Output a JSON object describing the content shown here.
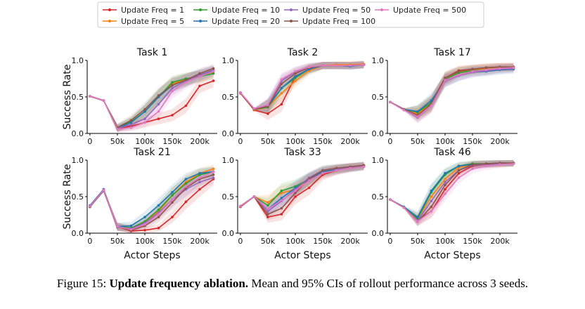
{
  "caption": {
    "label": "Figure 15:",
    "bold": "Update frequency ablation.",
    "text": "Mean and 95% CIs of rollout performance across 3 seeds."
  },
  "chart_data": {
    "type": "line",
    "xlabel": "Actor Steps",
    "ylabel": "Success Rate",
    "xlim": [
      -5000,
      232000
    ],
    "ylim": [
      0,
      1.0
    ],
    "xticks": [
      0,
      50000,
      100000,
      150000,
      200000
    ],
    "xtick_labels": [
      "0",
      "50k",
      "100k",
      "150k",
      "200k"
    ],
    "yticks": [
      0,
      0.5,
      1.0
    ],
    "ytick_labels": [
      "0.0",
      "0.5",
      "1.0"
    ],
    "x": [
      0,
      25000,
      50000,
      75000,
      100000,
      125000,
      150000,
      175000,
      200000,
      225000
    ],
    "legend": [
      {
        "name": "Update Freq = 1",
        "color": "#d62728"
      },
      {
        "name": "Update Freq = 5",
        "color": "#ff7f0e"
      },
      {
        "name": "Update Freq = 10",
        "color": "#2ca02c"
      },
      {
        "name": "Update Freq = 20",
        "color": "#1f77b4"
      },
      {
        "name": "Update Freq = 50",
        "color": "#9467bd"
      },
      {
        "name": "Update Freq = 100",
        "color": "#8c564b"
      },
      {
        "name": "Update Freq = 500",
        "color": "#e377c2"
      }
    ],
    "panels": [
      {
        "title": "Task 1",
        "series": [
          {
            "name": "Update Freq = 1",
            "values": [
              0.51,
              0.45,
              0.07,
              0.1,
              0.15,
              0.2,
              0.25,
              0.38,
              0.65,
              0.72
            ]
          },
          {
            "name": "Update Freq = 5",
            "values": [
              0.51,
              0.45,
              0.07,
              0.15,
              0.3,
              0.5,
              0.68,
              0.74,
              0.78,
              0.84
            ]
          },
          {
            "name": "Update Freq = 10",
            "values": [
              0.51,
              0.45,
              0.08,
              0.16,
              0.3,
              0.5,
              0.7,
              0.75,
              0.78,
              0.82
            ]
          },
          {
            "name": "Update Freq = 20",
            "values": [
              0.51,
              0.45,
              0.07,
              0.15,
              0.3,
              0.5,
              0.66,
              0.73,
              0.8,
              0.86
            ]
          },
          {
            "name": "Update Freq = 50",
            "values": [
              0.51,
              0.45,
              0.07,
              0.12,
              0.2,
              0.4,
              0.62,
              0.72,
              0.8,
              0.87
            ]
          },
          {
            "name": "Update Freq = 100",
            "values": [
              0.51,
              0.45,
              0.08,
              0.18,
              0.33,
              0.52,
              0.66,
              0.73,
              0.82,
              0.89
            ]
          },
          {
            "name": "Update Freq = 500",
            "values": [
              0.51,
              0.45,
              0.06,
              0.08,
              0.15,
              0.3,
              0.58,
              0.7,
              0.78,
              0.85
            ]
          }
        ]
      },
      {
        "title": "Task 2",
        "series": [
          {
            "name": "Update Freq = 1",
            "values": [
              0.55,
              0.32,
              0.27,
              0.4,
              0.78,
              0.88,
              0.93,
              0.93,
              0.93,
              0.94
            ]
          },
          {
            "name": "Update Freq = 5",
            "values": [
              0.56,
              0.32,
              0.36,
              0.55,
              0.72,
              0.86,
              0.93,
              0.94,
              0.94,
              0.95
            ]
          },
          {
            "name": "Update Freq = 10",
            "values": [
              0.56,
              0.33,
              0.36,
              0.62,
              0.76,
              0.88,
              0.93,
              0.93,
              0.93,
              0.94
            ]
          },
          {
            "name": "Update Freq = 20",
            "values": [
              0.56,
              0.33,
              0.37,
              0.62,
              0.78,
              0.88,
              0.93,
              0.93,
              0.92,
              0.94
            ]
          },
          {
            "name": "Update Freq = 50",
            "values": [
              0.56,
              0.34,
              0.38,
              0.72,
              0.84,
              0.91,
              0.93,
              0.93,
              0.93,
              0.94
            ]
          },
          {
            "name": "Update Freq = 100",
            "values": [
              0.56,
              0.33,
              0.37,
              0.68,
              0.82,
              0.9,
              0.93,
              0.93,
              0.93,
              0.94
            ]
          },
          {
            "name": "Update Freq = 500",
            "values": [
              0.56,
              0.34,
              0.39,
              0.74,
              0.85,
              0.91,
              0.93,
              0.93,
              0.93,
              0.94
            ]
          }
        ]
      },
      {
        "title": "Task 17",
        "series": [
          {
            "name": "Update Freq = 1",
            "values": [
              0.43,
              0.33,
              0.29,
              0.42,
              0.76,
              0.86,
              0.88,
              0.9,
              0.91,
              0.91
            ]
          },
          {
            "name": "Update Freq = 5",
            "values": [
              0.43,
              0.33,
              0.27,
              0.4,
              0.74,
              0.84,
              0.87,
              0.89,
              0.91,
              0.91
            ]
          },
          {
            "name": "Update Freq = 10",
            "values": [
              0.43,
              0.33,
              0.29,
              0.42,
              0.74,
              0.83,
              0.86,
              0.87,
              0.89,
              0.9
            ]
          },
          {
            "name": "Update Freq = 20",
            "values": [
              0.43,
              0.33,
              0.3,
              0.45,
              0.72,
              0.8,
              0.84,
              0.85,
              0.87,
              0.88
            ]
          },
          {
            "name": "Update Freq = 50",
            "values": [
              0.43,
              0.32,
              0.22,
              0.38,
              0.72,
              0.79,
              0.84,
              0.86,
              0.88,
              0.89
            ]
          },
          {
            "name": "Update Freq = 100",
            "values": [
              0.43,
              0.33,
              0.25,
              0.4,
              0.76,
              0.85,
              0.88,
              0.9,
              0.91,
              0.91
            ]
          },
          {
            "name": "Update Freq = 500",
            "values": [
              0.43,
              0.32,
              0.23,
              0.38,
              0.73,
              0.8,
              0.85,
              0.87,
              0.89,
              0.9
            ]
          }
        ]
      },
      {
        "title": "Task 21",
        "series": [
          {
            "name": "Update Freq = 1",
            "values": [
              0.36,
              0.6,
              0.09,
              0.03,
              0.04,
              0.07,
              0.22,
              0.43,
              0.6,
              0.74
            ]
          },
          {
            "name": "Update Freq = 5",
            "values": [
              0.37,
              0.59,
              0.08,
              0.06,
              0.15,
              0.3,
              0.52,
              0.7,
              0.82,
              0.88
            ]
          },
          {
            "name": "Update Freq = 10",
            "values": [
              0.37,
              0.59,
              0.09,
              0.07,
              0.16,
              0.32,
              0.52,
              0.68,
              0.8,
              0.84
            ]
          },
          {
            "name": "Update Freq = 20",
            "values": [
              0.38,
              0.6,
              0.09,
              0.1,
              0.22,
              0.38,
              0.56,
              0.74,
              0.82,
              0.84
            ]
          },
          {
            "name": "Update Freq = 50",
            "values": [
              0.37,
              0.58,
              0.08,
              0.06,
              0.14,
              0.28,
              0.46,
              0.6,
              0.7,
              0.76
            ]
          },
          {
            "name": "Update Freq = 100",
            "values": [
              0.36,
              0.58,
              0.09,
              0.04,
              0.1,
              0.22,
              0.42,
              0.62,
              0.74,
              0.8
            ]
          },
          {
            "name": "Update Freq = 500",
            "values": [
              0.37,
              0.59,
              0.09,
              0.05,
              0.12,
              0.26,
              0.46,
              0.64,
              0.76,
              0.84
            ]
          }
        ]
      },
      {
        "title": "Task 33",
        "series": [
          {
            "name": "Update Freq = 1",
            "values": [
              0.36,
              0.5,
              0.22,
              0.26,
              0.5,
              0.62,
              0.8,
              0.86,
              0.9,
              0.92
            ]
          },
          {
            "name": "Update Freq = 5",
            "values": [
              0.37,
              0.5,
              0.42,
              0.55,
              0.6,
              0.72,
              0.82,
              0.87,
              0.9,
              0.92
            ]
          },
          {
            "name": "Update Freq = 10",
            "values": [
              0.37,
              0.5,
              0.38,
              0.58,
              0.64,
              0.74,
              0.84,
              0.88,
              0.9,
              0.92
            ]
          },
          {
            "name": "Update Freq = 20",
            "values": [
              0.37,
              0.5,
              0.33,
              0.48,
              0.62,
              0.74,
              0.84,
              0.87,
              0.89,
              0.91
            ]
          },
          {
            "name": "Update Freq = 50",
            "values": [
              0.37,
              0.5,
              0.3,
              0.44,
              0.6,
              0.76,
              0.86,
              0.88,
              0.9,
              0.92
            ]
          },
          {
            "name": "Update Freq = 100",
            "values": [
              0.37,
              0.5,
              0.26,
              0.34,
              0.55,
              0.74,
              0.86,
              0.89,
              0.91,
              0.93
            ]
          },
          {
            "name": "Update Freq = 500",
            "values": [
              0.37,
              0.5,
              0.33,
              0.45,
              0.58,
              0.72,
              0.82,
              0.86,
              0.89,
              0.91
            ]
          }
        ]
      },
      {
        "title": "Task 46",
        "series": [
          {
            "name": "Update Freq = 1",
            "values": [
              0.46,
              0.35,
              0.18,
              0.3,
              0.6,
              0.82,
              0.92,
              0.94,
              0.95,
              0.96
            ]
          },
          {
            "name": "Update Freq = 5",
            "values": [
              0.46,
              0.35,
              0.2,
              0.5,
              0.74,
              0.9,
              0.94,
              0.95,
              0.95,
              0.96
            ]
          },
          {
            "name": "Update Freq = 10",
            "values": [
              0.46,
              0.36,
              0.2,
              0.56,
              0.8,
              0.92,
              0.95,
              0.95,
              0.96,
              0.96
            ]
          },
          {
            "name": "Update Freq = 20",
            "values": [
              0.46,
              0.36,
              0.22,
              0.58,
              0.82,
              0.92,
              0.94,
              0.95,
              0.96,
              0.96
            ]
          },
          {
            "name": "Update Freq = 50",
            "values": [
              0.46,
              0.35,
              0.17,
              0.44,
              0.7,
              0.86,
              0.93,
              0.94,
              0.95,
              0.96
            ]
          },
          {
            "name": "Update Freq = 100",
            "values": [
              0.46,
              0.35,
              0.16,
              0.36,
              0.66,
              0.86,
              0.94,
              0.95,
              0.96,
              0.96
            ]
          },
          {
            "name": "Update Freq = 500",
            "values": [
              0.46,
              0.35,
              0.16,
              0.3,
              0.54,
              0.76,
              0.88,
              0.92,
              0.94,
              0.95
            ]
          }
        ]
      }
    ]
  }
}
